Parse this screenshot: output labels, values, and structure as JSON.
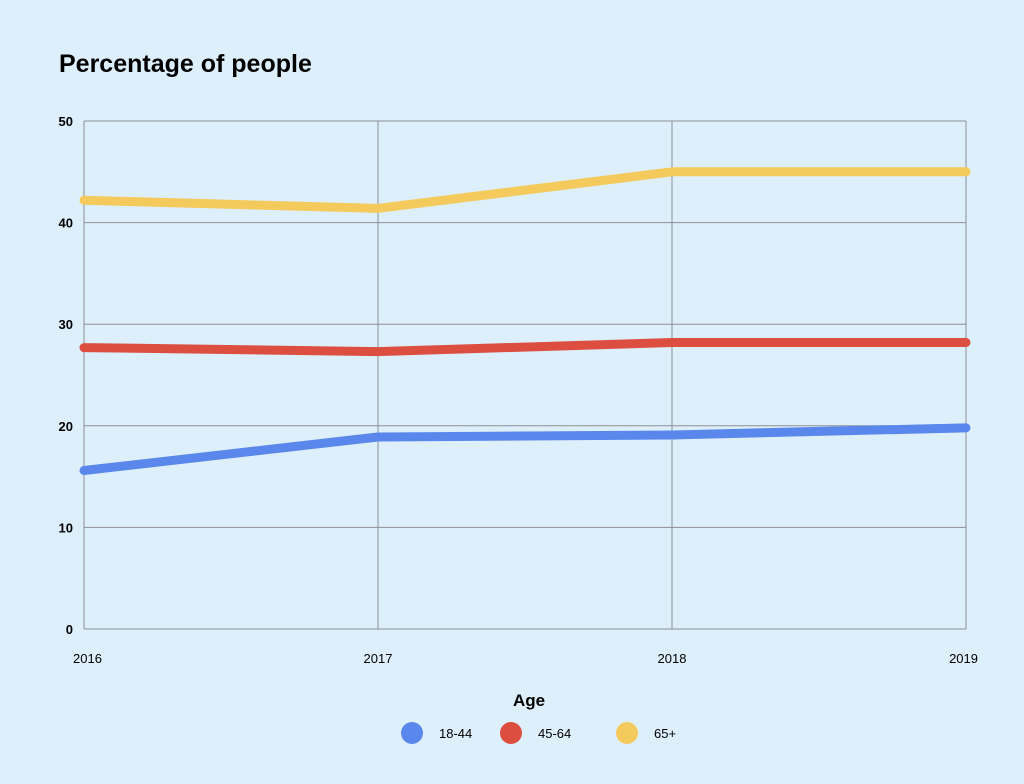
{
  "chart_data": {
    "type": "line",
    "title": "Percentage of people",
    "x": [
      "2016",
      "2017",
      "2018",
      "2019"
    ],
    "ylim": [
      0,
      50
    ],
    "yticks": [
      "0",
      "10",
      "20",
      "30",
      "40",
      "50"
    ],
    "grid": true,
    "legend_title": "Age",
    "legend_position": "bottom-center",
    "series": [
      {
        "name": "18-44",
        "color": "#5a87ec",
        "values": [
          15.6,
          18.9,
          19.1,
          19.8
        ]
      },
      {
        "name": "45-64",
        "color": "#db4e40",
        "values": [
          27.7,
          27.3,
          28.2,
          28.2
        ]
      },
      {
        "name": "65+",
        "color": "#f5ca5c",
        "values": [
          42.2,
          41.4,
          45.0,
          45.0
        ]
      }
    ]
  }
}
